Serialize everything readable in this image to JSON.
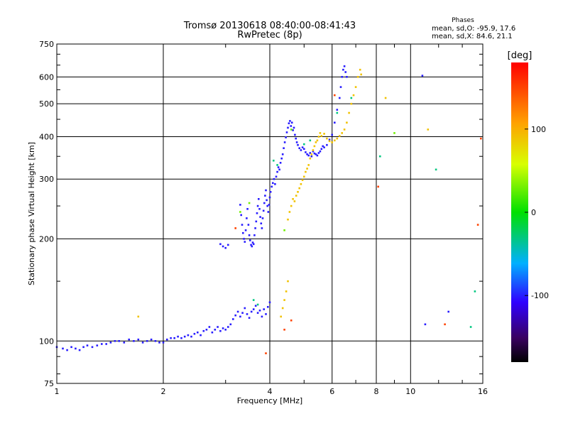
{
  "chart_data": {
    "type": "scatter",
    "title": "Tromsø 20130618 08:40:00-08:41:43",
    "subtitle": "RwPretec (8p)",
    "phases": {
      "heading": "Phases",
      "line_o": "mean, sd,O: -95.9, 17.6",
      "line_x": "mean, sd,X:  84.6, 21.1"
    },
    "xlabel": "Frequency [MHz]",
    "ylabel": "Stationary phase Virtual Height [km]",
    "x_scale": "log",
    "y_scale": "log",
    "xlim": [
      1,
      16
    ],
    "ylim": [
      75,
      750
    ],
    "x_ticks": [
      1,
      2,
      4,
      6,
      8,
      10,
      16
    ],
    "x_tick_labels": [
      "1",
      "2",
      "4",
      "6",
      "8",
      "10",
      "16"
    ],
    "y_ticks": [
      75,
      100,
      200,
      300,
      400,
      500,
      600,
      750
    ],
    "y_tick_labels": [
      "75",
      "100",
      "200",
      "300",
      "400",
      "500",
      "600",
      "750"
    ],
    "grid": true,
    "colorbar": {
      "unit": "[deg]",
      "range": [
        -180,
        180
      ],
      "ticks": [
        100,
        0,
        -100
      ],
      "tick_labels": [
        "100",
        "0",
        "-100"
      ]
    },
    "series": [
      {
        "mode": "O",
        "phase_deg": -100,
        "points": [
          [
            1.0,
            96
          ],
          [
            1.04,
            95
          ],
          [
            1.07,
            94
          ],
          [
            1.1,
            96
          ],
          [
            1.13,
            95
          ],
          [
            1.16,
            94
          ],
          [
            1.19,
            96
          ],
          [
            1.22,
            97
          ],
          [
            1.26,
            96
          ],
          [
            1.3,
            97
          ],
          [
            1.34,
            98
          ],
          [
            1.38,
            98
          ],
          [
            1.42,
            99
          ],
          [
            1.46,
            100
          ],
          [
            1.5,
            100
          ],
          [
            1.55,
            99
          ],
          [
            1.6,
            101
          ],
          [
            1.65,
            100
          ],
          [
            1.7,
            101
          ],
          [
            1.75,
            99
          ],
          [
            1.8,
            100
          ],
          [
            1.85,
            101
          ],
          [
            1.9,
            100
          ],
          [
            1.95,
            99
          ],
          [
            2.0,
            99
          ],
          [
            2.05,
            101
          ],
          [
            2.1,
            102
          ],
          [
            2.15,
            102
          ],
          [
            2.2,
            103
          ],
          [
            2.25,
            102
          ],
          [
            2.3,
            103
          ],
          [
            2.35,
            104
          ],
          [
            2.4,
            103
          ],
          [
            2.45,
            105
          ],
          [
            2.5,
            106
          ],
          [
            2.55,
            104
          ],
          [
            2.6,
            107
          ],
          [
            2.65,
            108
          ],
          [
            2.7,
            110
          ],
          [
            2.75,
            106
          ],
          [
            2.8,
            108
          ],
          [
            2.85,
            110
          ],
          [
            2.9,
            107
          ],
          [
            2.95,
            109
          ],
          [
            3.0,
            108
          ],
          [
            3.05,
            110
          ],
          [
            3.1,
            112
          ],
          [
            3.15,
            116
          ],
          [
            3.2,
            119
          ],
          [
            3.25,
            122
          ],
          [
            3.3,
            118
          ],
          [
            3.35,
            121
          ],
          [
            3.4,
            125
          ],
          [
            3.45,
            120
          ],
          [
            3.5,
            117
          ],
          [
            3.55,
            122
          ],
          [
            3.6,
            124
          ],
          [
            3.65,
            127
          ],
          [
            3.7,
            121
          ],
          [
            3.75,
            123
          ],
          [
            3.8,
            118
          ],
          [
            3.85,
            124
          ],
          [
            3.9,
            120
          ],
          [
            3.95,
            126
          ],
          [
            4.0,
            130
          ],
          [
            2.9,
            193
          ],
          [
            2.95,
            190
          ],
          [
            3.0,
            188
          ],
          [
            3.05,
            192
          ],
          [
            3.3,
            252
          ],
          [
            3.32,
            235
          ],
          [
            3.34,
            220
          ],
          [
            3.36,
            208
          ],
          [
            3.38,
            200
          ],
          [
            3.4,
            196
          ],
          [
            3.42,
            212
          ],
          [
            3.44,
            230
          ],
          [
            3.46,
            245
          ],
          [
            3.48,
            220
          ],
          [
            3.5,
            205
          ],
          [
            3.52,
            198
          ],
          [
            3.54,
            192
          ],
          [
            3.56,
            190
          ],
          [
            3.58,
            195
          ],
          [
            3.6,
            193
          ],
          [
            3.62,
            205
          ],
          [
            3.64,
            215
          ],
          [
            3.66,
            225
          ],
          [
            3.68,
            238
          ],
          [
            3.7,
            250
          ],
          [
            3.72,
            262
          ],
          [
            3.74,
            245
          ],
          [
            3.76,
            232
          ],
          [
            3.78,
            222
          ],
          [
            3.8,
            215
          ],
          [
            3.82,
            230
          ],
          [
            3.84,
            242
          ],
          [
            3.86,
            255
          ],
          [
            3.88,
            268
          ],
          [
            3.9,
            278
          ],
          [
            3.92,
            260
          ],
          [
            3.94,
            250
          ],
          [
            3.96,
            240
          ],
          [
            3.98,
            252
          ],
          [
            4.0,
            265
          ],
          [
            4.02,
            275
          ],
          [
            4.05,
            285
          ],
          [
            4.08,
            292
          ],
          [
            4.11,
            300
          ],
          [
            4.14,
            290
          ],
          [
            4.17,
            305
          ],
          [
            4.2,
            315
          ],
          [
            4.23,
            325
          ],
          [
            4.26,
            320
          ],
          [
            4.29,
            335
          ],
          [
            4.32,
            345
          ],
          [
            4.35,
            355
          ],
          [
            4.38,
            370
          ],
          [
            4.41,
            385
          ],
          [
            4.44,
            398
          ],
          [
            4.47,
            412
          ],
          [
            4.5,
            425
          ],
          [
            4.53,
            438
          ],
          [
            4.56,
            445
          ],
          [
            4.59,
            430
          ],
          [
            4.62,
            440
          ],
          [
            4.65,
            418
          ],
          [
            4.68,
            425
          ],
          [
            4.71,
            405
          ],
          [
            4.74,
            395
          ],
          [
            4.77,
            385
          ],
          [
            4.8,
            378
          ],
          [
            4.85,
            370
          ],
          [
            4.9,
            365
          ],
          [
            4.95,
            372
          ],
          [
            5.0,
            368
          ],
          [
            5.05,
            360
          ],
          [
            5.1,
            355
          ],
          [
            5.15,
            352
          ],
          [
            5.2,
            358
          ],
          [
            5.25,
            350
          ],
          [
            5.3,
            362
          ],
          [
            5.35,
            357
          ],
          [
            5.4,
            355
          ],
          [
            5.45,
            352
          ],
          [
            5.5,
            358
          ],
          [
            5.55,
            362
          ],
          [
            5.6,
            368
          ],
          [
            5.65,
            375
          ],
          [
            5.7,
            372
          ],
          [
            5.8,
            378
          ],
          [
            5.9,
            392
          ],
          [
            6.0,
            405
          ],
          [
            6.1,
            440
          ],
          [
            6.2,
            480
          ],
          [
            6.3,
            520
          ],
          [
            6.35,
            560
          ],
          [
            6.4,
            600
          ],
          [
            6.45,
            630
          ],
          [
            6.5,
            645
          ],
          [
            6.55,
            620
          ],
          [
            6.6,
            600
          ],
          [
            10.8,
            605
          ],
          [
            11.0,
            112
          ],
          [
            12.8,
            122
          ]
        ]
      },
      {
        "mode": "X",
        "phase_deg": 90,
        "points": [
          [
            4.5,
            228
          ],
          [
            4.55,
            240
          ],
          [
            4.6,
            250
          ],
          [
            4.65,
            262
          ],
          [
            4.7,
            258
          ],
          [
            4.75,
            268
          ],
          [
            4.8,
            275
          ],
          [
            4.85,
            282
          ],
          [
            4.9,
            290
          ],
          [
            4.95,
            298
          ],
          [
            5.0,
            305
          ],
          [
            5.05,
            315
          ],
          [
            5.1,
            322
          ],
          [
            5.15,
            330
          ],
          [
            5.2,
            345
          ],
          [
            5.25,
            355
          ],
          [
            5.3,
            365
          ],
          [
            5.35,
            375
          ],
          [
            5.4,
            385
          ],
          [
            5.45,
            390
          ],
          [
            5.5,
            400
          ],
          [
            5.55,
            410
          ],
          [
            5.6,
            402
          ],
          [
            5.7,
            408
          ],
          [
            5.8,
            395
          ],
          [
            5.9,
            388
          ],
          [
            6.0,
            385
          ],
          [
            6.1,
            390
          ],
          [
            6.2,
            395
          ],
          [
            6.3,
            402
          ],
          [
            6.4,
            410
          ],
          [
            6.5,
            420
          ],
          [
            6.6,
            440
          ],
          [
            6.7,
            470
          ],
          [
            6.8,
            500
          ],
          [
            6.9,
            530
          ],
          [
            7.0,
            560
          ],
          [
            7.1,
            600
          ],
          [
            7.2,
            630
          ],
          [
            7.25,
            610
          ],
          [
            4.3,
            118
          ],
          [
            4.35,
            125
          ],
          [
            4.4,
            132
          ],
          [
            4.45,
            140
          ],
          [
            4.5,
            150
          ],
          [
            1.7,
            118
          ],
          [
            8.5,
            520
          ],
          [
            11.2,
            420
          ]
        ]
      },
      {
        "mode": "scatter",
        "phase_deg": -30,
        "points": [
          [
            3.6,
            132
          ],
          [
            3.7,
            128
          ],
          [
            4.1,
            340
          ],
          [
            4.2,
            330
          ],
          [
            5.0,
            380
          ],
          [
            5.2,
            390
          ],
          [
            6.2,
            470
          ],
          [
            6.8,
            520
          ],
          [
            8.2,
            350
          ],
          [
            11.8,
            320
          ],
          [
            14.8,
            110
          ],
          [
            15.2,
            140
          ]
        ]
      },
      {
        "mode": "scatter",
        "phase_deg": 30,
        "points": [
          [
            3.3,
            240
          ],
          [
            3.5,
            255
          ],
          [
            4.4,
            212
          ],
          [
            4.6,
            420
          ],
          [
            9.0,
            410
          ]
        ]
      },
      {
        "mode": "scatter",
        "phase_deg": 150,
        "points": [
          [
            3.2,
            215
          ],
          [
            3.9,
            92
          ],
          [
            4.4,
            108
          ],
          [
            4.6,
            115
          ],
          [
            6.1,
            530
          ],
          [
            8.1,
            285
          ],
          [
            12.5,
            112
          ],
          [
            15.5,
            220
          ],
          [
            15.8,
            395
          ]
        ]
      }
    ]
  }
}
